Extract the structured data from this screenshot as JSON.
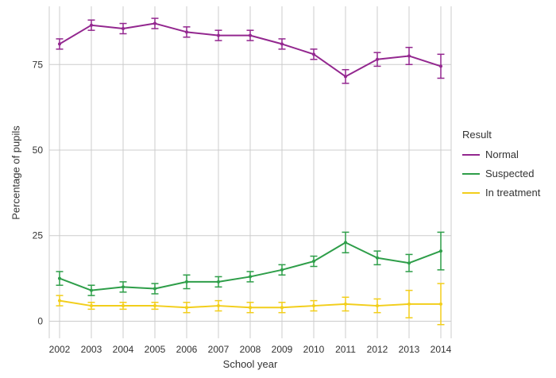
{
  "chart_data": {
    "type": "line",
    "title": "",
    "xlabel": "School year",
    "ylabel": "Percentage of pupils",
    "legend_title": "Result",
    "legend_position": "right",
    "grid": true,
    "x": [
      2002,
      2003,
      2004,
      2005,
      2006,
      2007,
      2008,
      2009,
      2010,
      2011,
      2012,
      2013,
      2014
    ],
    "yticks": [
      0,
      25,
      50,
      75
    ],
    "ylim": [
      -5,
      92
    ],
    "grid_color": "#cccccc",
    "text_color": "#333333",
    "series": [
      {
        "name": "Normal",
        "color": "#93278F",
        "values": [
          81,
          86.5,
          85.5,
          87,
          84.5,
          83.5,
          83.5,
          81,
          78,
          71.5,
          76.5,
          77.5,
          74.5
        ],
        "errors": [
          1.5,
          1.5,
          1.5,
          1.5,
          1.5,
          1.5,
          1.5,
          1.5,
          1.5,
          2,
          2,
          2.5,
          3.5
        ]
      },
      {
        "name": "Suspected",
        "color": "#2E9E49",
        "values": [
          12.5,
          9,
          10,
          9.5,
          11.5,
          11.5,
          13,
          15,
          17.5,
          23,
          18.5,
          17,
          20.5
        ],
        "errors": [
          2,
          1.5,
          1.5,
          1.5,
          2,
          1.5,
          1.5,
          1.5,
          1.5,
          3,
          2,
          2.5,
          5.5
        ]
      },
      {
        "name": "In treatment",
        "color": "#F2CE1B",
        "values": [
          6,
          4.5,
          4.5,
          4.5,
          4,
          4.5,
          4,
          4,
          4.5,
          5,
          4.5,
          5,
          5
        ],
        "errors": [
          1.5,
          1,
          1,
          1,
          1.5,
          1.5,
          1.5,
          1.5,
          1.5,
          2,
          2,
          4,
          6
        ]
      }
    ]
  }
}
